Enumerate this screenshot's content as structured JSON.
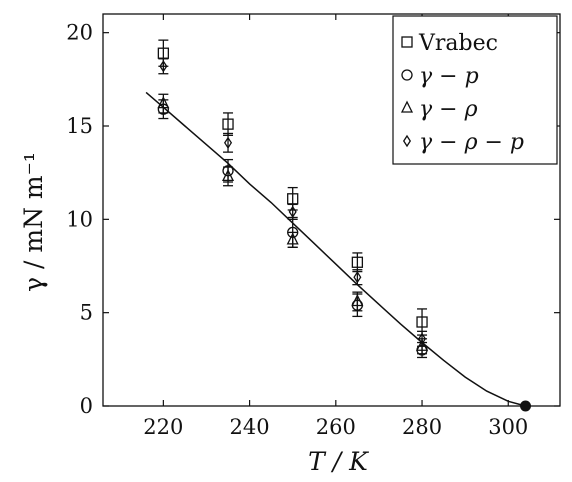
{
  "chart_data": {
    "type": "scatter",
    "xlabel": "T / K",
    "ylabel": "γ / mN m⁻¹",
    "xlim": [
      206,
      312
    ],
    "ylim": [
      0,
      21
    ],
    "xticks": [
      220,
      240,
      260,
      280,
      300
    ],
    "yticks": [
      0,
      5,
      10,
      15,
      20
    ],
    "grid": false,
    "legend_position": "top-right",
    "series": [
      {
        "name": "Vrabec",
        "marker": "square",
        "x": [
          220,
          235,
          250,
          265,
          280
        ],
        "y": [
          18.9,
          15.1,
          11.1,
          7.7,
          4.5
        ],
        "err": [
          0.7,
          0.6,
          0.6,
          0.5,
          0.7
        ]
      },
      {
        "name": "γ − p",
        "marker": "circle",
        "x": [
          220,
          235,
          250,
          265,
          280
        ],
        "y": [
          15.9,
          12.6,
          9.3,
          5.4,
          3.0
        ],
        "err": [
          0.5,
          0.6,
          0.8,
          0.6,
          0.4
        ]
      },
      {
        "name": "γ − ρ",
        "marker": "triangle",
        "x": [
          220,
          235,
          250,
          265,
          280
        ],
        "y": [
          16.2,
          12.3,
          8.9,
          5.6,
          3.2
        ],
        "err": [
          0.5,
          0.5,
          0.4,
          0.5,
          0.4
        ]
      },
      {
        "name": "γ − ρ − p",
        "marker": "diamond",
        "x": [
          220,
          235,
          250,
          265,
          280
        ],
        "y": [
          18.2,
          14.1,
          10.4,
          6.9,
          3.6
        ],
        "err": [
          0.4,
          0.5,
          0.4,
          0.4,
          0.4
        ]
      }
    ],
    "fit_curve": {
      "x": [
        216,
        220,
        225,
        230,
        235,
        240,
        245,
        250,
        255,
        260,
        265,
        270,
        275,
        280,
        285,
        290,
        295,
        300,
        304
      ],
      "y": [
        16.8,
        16.0,
        15.0,
        14.0,
        13.0,
        11.9,
        10.9,
        9.8,
        8.7,
        7.6,
        6.5,
        5.45,
        4.4,
        3.4,
        2.45,
        1.55,
        0.8,
        0.25,
        0.0
      ]
    },
    "critical_point": {
      "x": 304,
      "y": 0
    }
  }
}
